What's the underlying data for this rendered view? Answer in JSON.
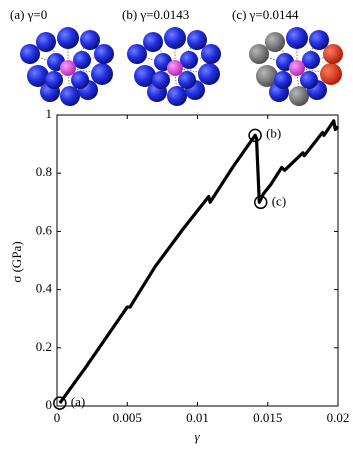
{
  "insets": [
    {
      "label": "(a) γ=0"
    },
    {
      "label": "(b) γ=0.0143"
    },
    {
      "label": "(c) γ=0.0144"
    }
  ],
  "chart_data": {
    "type": "line",
    "x_label": "γ",
    "y_label": "σ (GPa)",
    "x": [
      0.0002,
      0.002,
      0.004,
      0.005,
      0.0052,
      0.007,
      0.009,
      0.0108,
      0.0109,
      0.0125,
      0.0141,
      0.0142,
      0.0144,
      0.0147,
      0.0152,
      0.016,
      0.0162,
      0.0175,
      0.0176,
      0.0189,
      0.019,
      0.0197,
      0.0198,
      0.02
    ],
    "series": [
      {
        "color": "#000000",
        "values": [
          0.01,
          0.13,
          0.27,
          0.34,
          0.34,
          0.48,
          0.61,
          0.72,
          0.7,
          0.82,
          0.93,
          0.92,
          0.7,
          0.73,
          0.76,
          0.82,
          0.81,
          0.87,
          0.86,
          0.94,
          0.93,
          0.98,
          0.95,
          0.96
        ]
      }
    ],
    "annotations": [
      {
        "text": "(a)",
        "x": 0.0002,
        "y": 0.01
      },
      {
        "text": "(b)",
        "x": 0.0141,
        "y": 0.93
      },
      {
        "text": "(c)",
        "x": 0.0145,
        "y": 0.7
      }
    ],
    "xlim": [
      0,
      0.02
    ],
    "xticks": [
      0,
      0.005,
      0.01,
      0.015,
      0.02
    ],
    "ylim": [
      0,
      1
    ],
    "yticks": [
      0,
      0.2,
      0.4,
      0.6,
      0.8,
      1
    ]
  }
}
